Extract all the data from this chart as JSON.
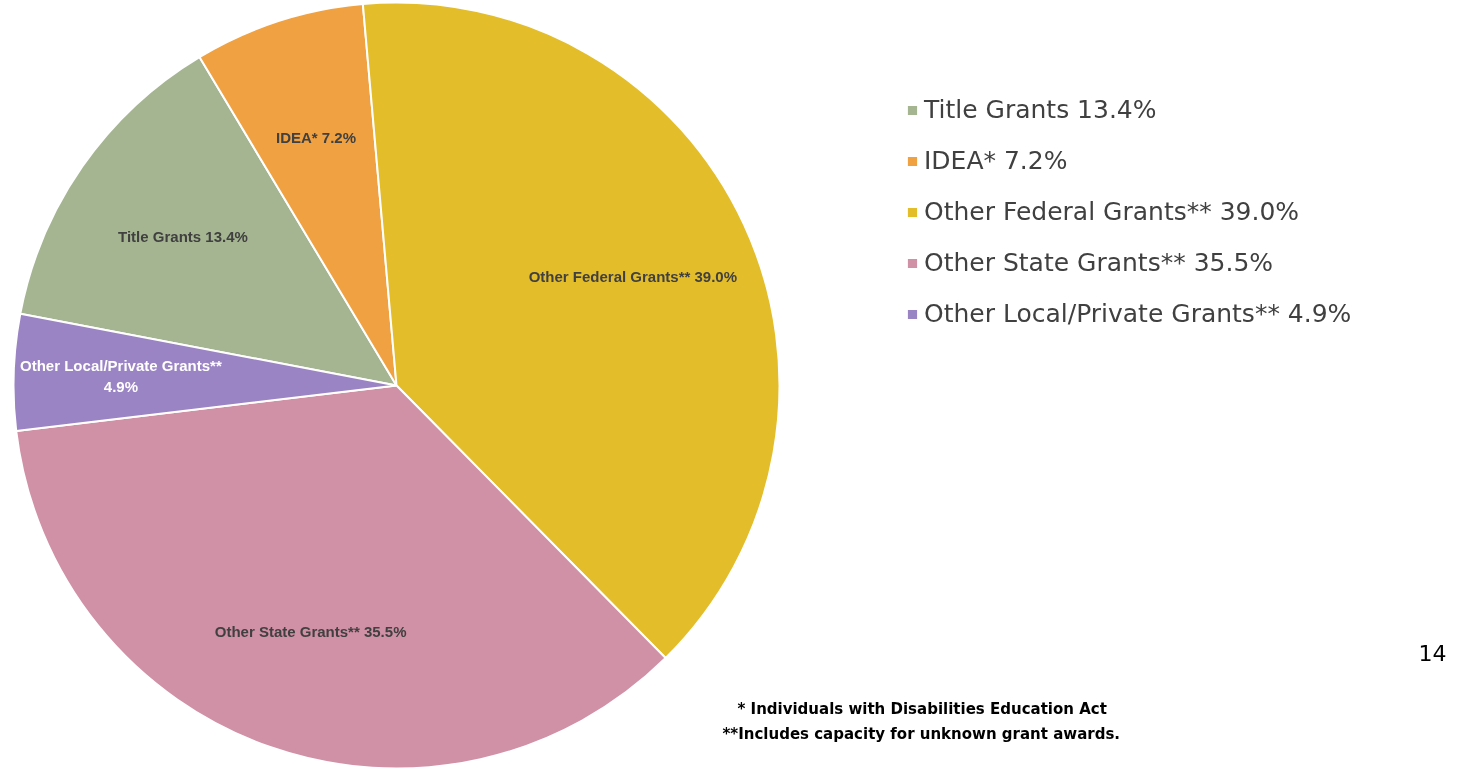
{
  "chart_data": {
    "type": "pie",
    "categories": [
      "Title Grants",
      "IDEA*",
      "Other Federal Grants**",
      "Other State Grants**",
      "Other Local/Private Grants**"
    ],
    "values": [
      13.4,
      7.2,
      39.0,
      35.5,
      4.9
    ],
    "colors": [
      "#a5b592",
      "#f0a142",
      "#e4bd2b",
      "#d090a6",
      "#9b84c4"
    ],
    "value_labels": [
      "13.4%",
      "7.2%",
      "39.0%",
      "35.5%",
      "4.9%"
    ],
    "legend": "top right",
    "annotations": [
      "14",
      "* Individuals with Disabilities Education Act",
      "**Includes capacity for unknown grant awards."
    ]
  }
}
